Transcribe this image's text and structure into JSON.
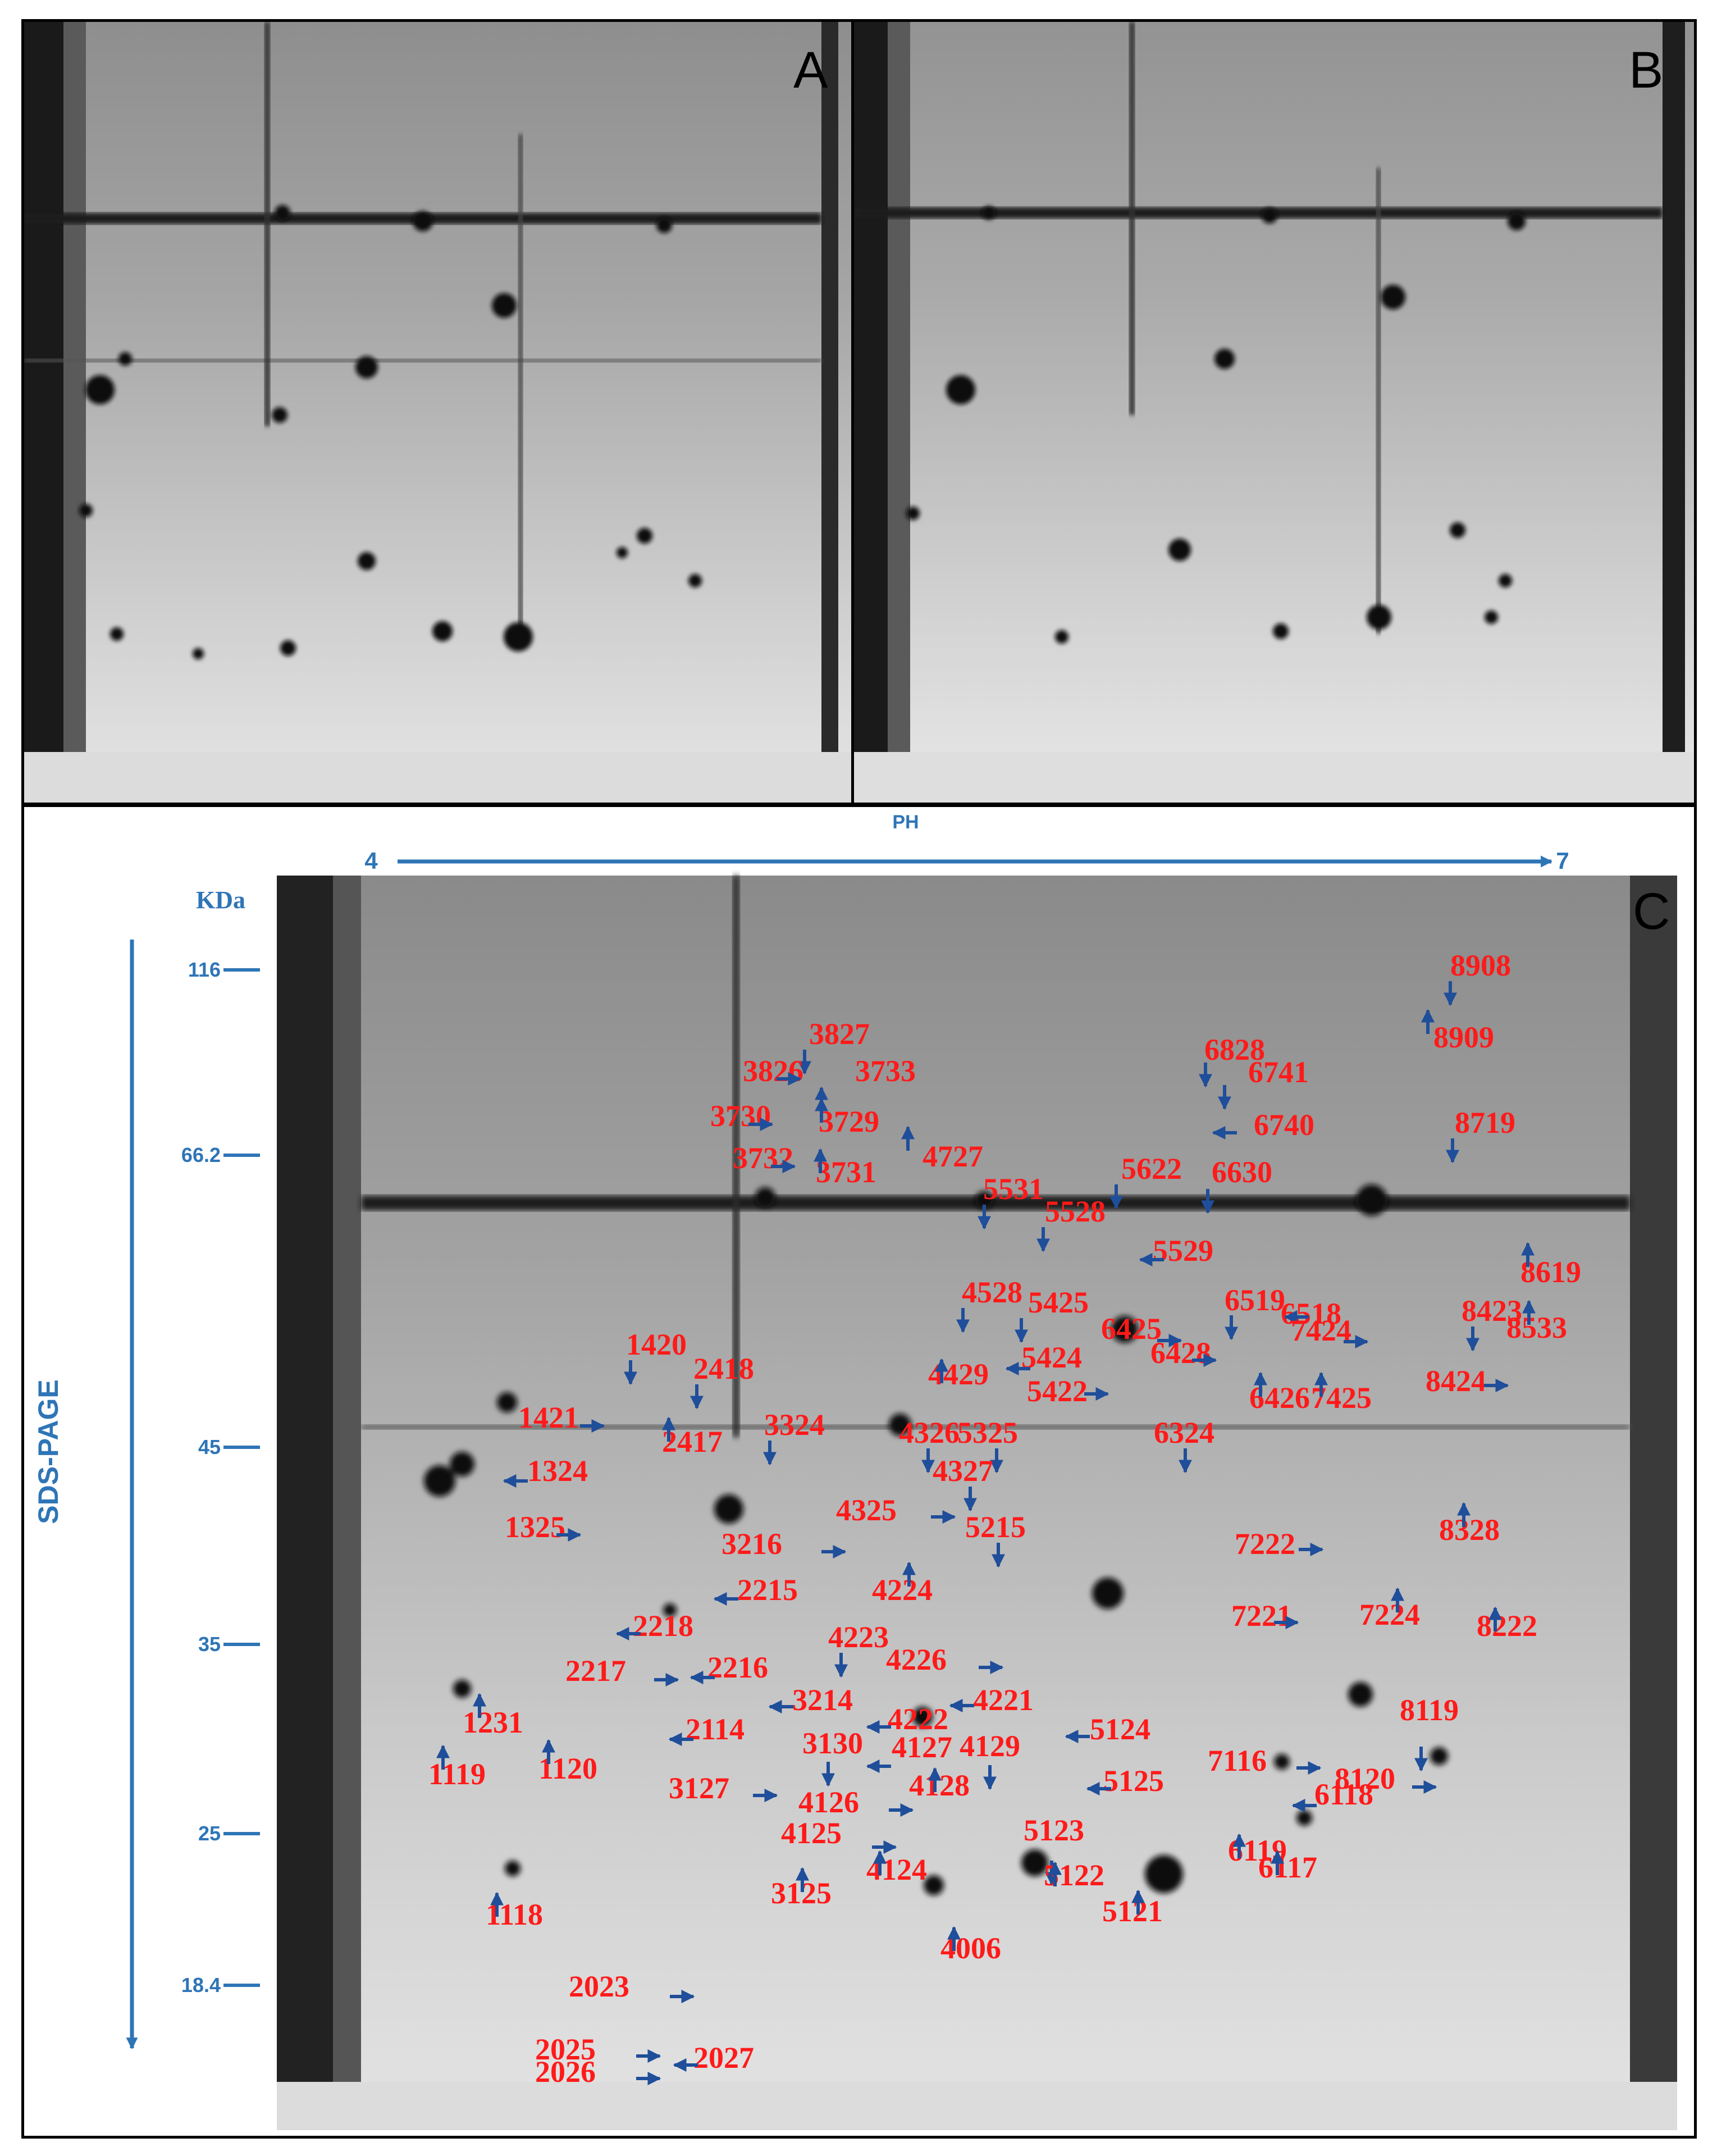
{
  "panels": {
    "a": {
      "letter": "A"
    },
    "b": {
      "letter": "B"
    },
    "c": {
      "letter": "C"
    }
  },
  "axes": {
    "ph_label": "PH",
    "ph_start": "4",
    "ph_end": "7",
    "kda_label": "KDa",
    "sds_label": "SDS-PAGE",
    "mw_markers": [
      "116",
      "66.2",
      "45",
      "35",
      "25",
      "18.4"
    ]
  },
  "colors": {
    "spot_label": "#ff1a1a",
    "arrow": "#1f4e9a",
    "axis": "#2e75b6"
  },
  "spots": [
    {
      "id": "8908",
      "arrow": "down"
    },
    {
      "id": "8909",
      "arrow": "up"
    },
    {
      "id": "3827",
      "arrow": "down"
    },
    {
      "id": "3826",
      "arrow": "right"
    },
    {
      "id": "3733",
      "arrow": "up"
    },
    {
      "id": "3730",
      "arrow": "right"
    },
    {
      "id": "3729",
      "arrow": "up"
    },
    {
      "id": "3732",
      "arrow": "right"
    },
    {
      "id": "3731",
      "arrow": "up"
    },
    {
      "id": "4727",
      "arrow": "up"
    },
    {
      "id": "6828",
      "arrow": "down"
    },
    {
      "id": "6741",
      "arrow": "down"
    },
    {
      "id": "6740",
      "arrow": "left"
    },
    {
      "id": "8719",
      "arrow": "down"
    },
    {
      "id": "5622",
      "arrow": "down"
    },
    {
      "id": "6630",
      "arrow": "down"
    },
    {
      "id": "5531",
      "arrow": "down"
    },
    {
      "id": "5528",
      "arrow": "down"
    },
    {
      "id": "5529",
      "arrow": "left"
    },
    {
      "id": "8619",
      "arrow": "up"
    },
    {
      "id": "4528",
      "arrow": "down"
    },
    {
      "id": "5425",
      "arrow": "down"
    },
    {
      "id": "6519",
      "arrow": "down"
    },
    {
      "id": "6518",
      "arrow": "left"
    },
    {
      "id": "8423",
      "arrow": "down"
    },
    {
      "id": "8533",
      "arrow": "up"
    },
    {
      "id": "6425",
      "arrow": "right"
    },
    {
      "id": "7424",
      "arrow": "right"
    },
    {
      "id": "1420",
      "arrow": "down"
    },
    {
      "id": "6428",
      "arrow": "right"
    },
    {
      "id": "5424",
      "arrow": "left"
    },
    {
      "id": "2418",
      "arrow": "down"
    },
    {
      "id": "4429",
      "arrow": "up"
    },
    {
      "id": "5422",
      "arrow": "right"
    },
    {
      "id": "6426",
      "arrow": "up"
    },
    {
      "id": "7425",
      "arrow": "up"
    },
    {
      "id": "8424",
      "arrow": "right"
    },
    {
      "id": "1421",
      "arrow": "right"
    },
    {
      "id": "2417",
      "arrow": "up"
    },
    {
      "id": "3324",
      "arrow": "down"
    },
    {
      "id": "4326",
      "arrow": "down"
    },
    {
      "id": "5325",
      "arrow": "down"
    },
    {
      "id": "6324",
      "arrow": "down"
    },
    {
      "id": "1324",
      "arrow": "left"
    },
    {
      "id": "4327",
      "arrow": "down"
    },
    {
      "id": "4325",
      "arrow": "right"
    },
    {
      "id": "8328",
      "arrow": "up"
    },
    {
      "id": "1325",
      "arrow": "right"
    },
    {
      "id": "5215",
      "arrow": "down"
    },
    {
      "id": "3216",
      "arrow": "right"
    },
    {
      "id": "7222",
      "arrow": "right"
    },
    {
      "id": "2215",
      "arrow": "left"
    },
    {
      "id": "4224",
      "arrow": "up"
    },
    {
      "id": "7221",
      "arrow": "right"
    },
    {
      "id": "7224",
      "arrow": "up"
    },
    {
      "id": "8222",
      "arrow": "up"
    },
    {
      "id": "2218",
      "arrow": "left"
    },
    {
      "id": "4223",
      "arrow": "down"
    },
    {
      "id": "4226",
      "arrow": "right"
    },
    {
      "id": "2217",
      "arrow": "right"
    },
    {
      "id": "2216",
      "arrow": "left"
    },
    {
      "id": "3214",
      "arrow": "left"
    },
    {
      "id": "4221",
      "arrow": "left"
    },
    {
      "id": "4222",
      "arrow": "left"
    },
    {
      "id": "1231",
      "arrow": "up"
    },
    {
      "id": "2114",
      "arrow": "left"
    },
    {
      "id": "5124",
      "arrow": "left"
    },
    {
      "id": "8119",
      "arrow": "down"
    },
    {
      "id": "3130",
      "arrow": "down"
    },
    {
      "id": "4127",
      "arrow": "left"
    },
    {
      "id": "4129",
      "arrow": "down"
    },
    {
      "id": "7116",
      "arrow": "right"
    },
    {
      "id": "1119",
      "arrow": "up"
    },
    {
      "id": "1120",
      "arrow": "up"
    },
    {
      "id": "3127",
      "arrow": "right"
    },
    {
      "id": "4128",
      "arrow": "up"
    },
    {
      "id": "5125",
      "arrow": "left"
    },
    {
      "id": "8120",
      "arrow": "right"
    },
    {
      "id": "4126",
      "arrow": "right"
    },
    {
      "id": "6118",
      "arrow": "left"
    },
    {
      "id": "4125",
      "arrow": "right"
    },
    {
      "id": "5123",
      "arrow": "down"
    },
    {
      "id": "6119",
      "arrow": "up"
    },
    {
      "id": "6117",
      "arrow": "up"
    },
    {
      "id": "4124",
      "arrow": "up"
    },
    {
      "id": "5122",
      "arrow": "up"
    },
    {
      "id": "3125",
      "arrow": "up"
    },
    {
      "id": "1118",
      "arrow": "up"
    },
    {
      "id": "5121",
      "arrow": "up"
    },
    {
      "id": "4006",
      "arrow": "up"
    },
    {
      "id": "2023",
      "arrow": "right"
    },
    {
      "id": "2025",
      "arrow": "right"
    },
    {
      "id": "2027",
      "arrow": "left"
    },
    {
      "id": "2026",
      "arrow": "right"
    }
  ]
}
